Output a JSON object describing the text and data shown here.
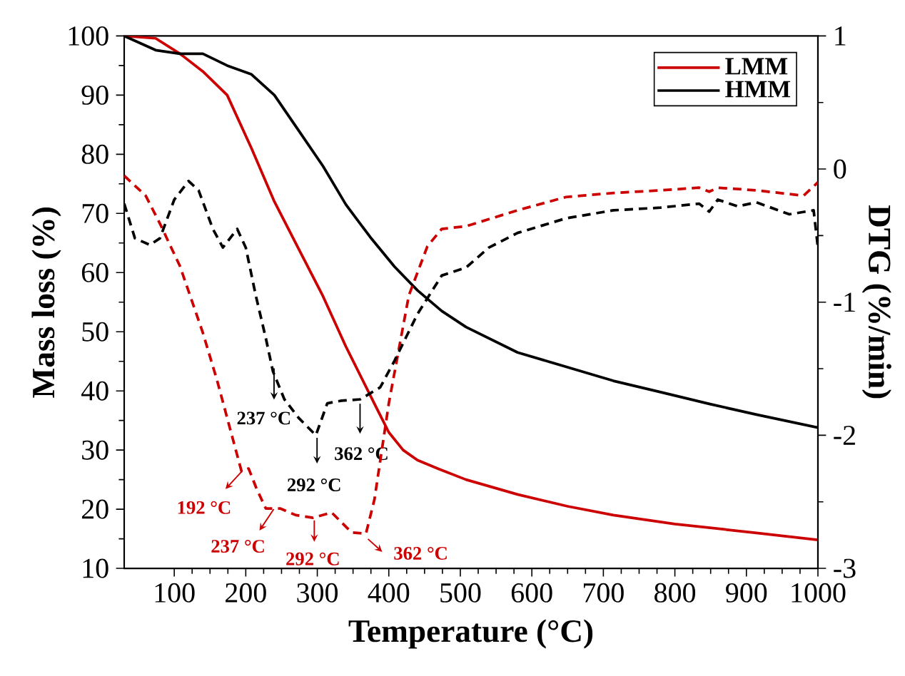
{
  "chart_data": {
    "type": "line",
    "xlabel": "Temperature (°C)",
    "ylabel": "Mass loss (%)",
    "y2label": "DTG (%/min)",
    "xlim": [
      30,
      1000
    ],
    "xticks": [
      100,
      200,
      300,
      400,
      500,
      600,
      700,
      800,
      900,
      1000
    ],
    "ylim": [
      10,
      100
    ],
    "yticks": [
      10,
      20,
      30,
      40,
      50,
      60,
      70,
      80,
      90,
      100
    ],
    "y2lim": [
      -3,
      1
    ],
    "y2ticks": [
      -3,
      -2,
      -1,
      0,
      1
    ],
    "legend": "top right",
    "marker": "none",
    "series": [
      {
        "name": "LMM",
        "color": "#cc0000",
        "line_style": "solid",
        "x": [
          30,
          74,
          108,
          140,
          174,
          208,
          240,
          274,
          308,
          340,
          380,
          400,
          420,
          440,
          470,
          508,
          580,
          650,
          714,
          800,
          914,
          1000
        ],
        "values": [
          100,
          99.6,
          97,
          94,
          90,
          81,
          72,
          64,
          56,
          47.5,
          37.8,
          33,
          30,
          28.3,
          26.8,
          25,
          22.5,
          20.5,
          19,
          17.5,
          16,
          14.8
        ]
      },
      {
        "name": "HMM",
        "color": "#000000",
        "line_style": "solid",
        "x": [
          30,
          74,
          108,
          140,
          174,
          208,
          240,
          274,
          308,
          340,
          374,
          408,
          440,
          474,
          508,
          580,
          650,
          714,
          780,
          848,
          914,
          1000
        ],
        "values": [
          100,
          97.6,
          97,
          97,
          95,
          93.5,
          90,
          84,
          78,
          71.5,
          66,
          61,
          57,
          53.5,
          50.8,
          46.5,
          44,
          41.7,
          39.8,
          37.8,
          36,
          33.8
        ]
      },
      {
        "color": "#cc0000",
        "line_style": "dashed",
        "axis": "y2",
        "x": [
          30,
          60,
          80,
          108,
          140,
          160,
          174,
          194,
          204,
          215,
          228,
          248,
          270,
          294,
          320,
          348,
          368,
          380,
          400,
          428,
          454,
          474,
          508,
          580,
          648,
          714,
          780,
          834,
          848,
          860,
          914,
          980,
          1000
        ],
        "values": [
          -0.05,
          -0.2,
          -0.41,
          -0.73,
          -1.23,
          -1.59,
          -1.87,
          -2.27,
          -2.25,
          -2.4,
          -2.55,
          -2.55,
          -2.6,
          -2.62,
          -2.58,
          -2.73,
          -2.74,
          -2.48,
          -1.76,
          -0.95,
          -0.58,
          -0.45,
          -0.43,
          -0.31,
          -0.21,
          -0.18,
          -0.16,
          -0.14,
          -0.17,
          -0.14,
          -0.16,
          -0.2,
          -0.1
        ]
      },
      {
        "color": "#000000",
        "line_style": "dashed",
        "axis": "y2",
        "x": [
          30,
          45,
          66,
          80,
          100,
          120,
          134,
          154,
          168,
          188,
          200,
          214,
          228,
          238,
          254,
          274,
          298,
          314,
          334,
          360,
          388,
          408,
          440,
          474,
          508,
          540,
          580,
          648,
          714,
          780,
          834,
          848,
          860,
          888,
          914,
          960,
          994,
          1000
        ],
        "values": [
          -0.26,
          -0.52,
          -0.57,
          -0.52,
          -0.23,
          -0.09,
          -0.16,
          -0.45,
          -0.59,
          -0.45,
          -0.59,
          -0.95,
          -1.27,
          -1.52,
          -1.73,
          -1.87,
          -2.0,
          -1.76,
          -1.74,
          -1.73,
          -1.64,
          -1.44,
          -1.09,
          -0.8,
          -0.74,
          -0.59,
          -0.48,
          -0.37,
          -0.31,
          -0.29,
          -0.26,
          -0.32,
          -0.23,
          -0.28,
          -0.25,
          -0.34,
          -0.31,
          -0.59
        ]
      }
    ],
    "annotations": [
      "237 °C",
      "292 °C",
      "362 °C",
      "192 °C",
      "237 °C",
      "292 °C",
      "362 °C"
    ]
  }
}
